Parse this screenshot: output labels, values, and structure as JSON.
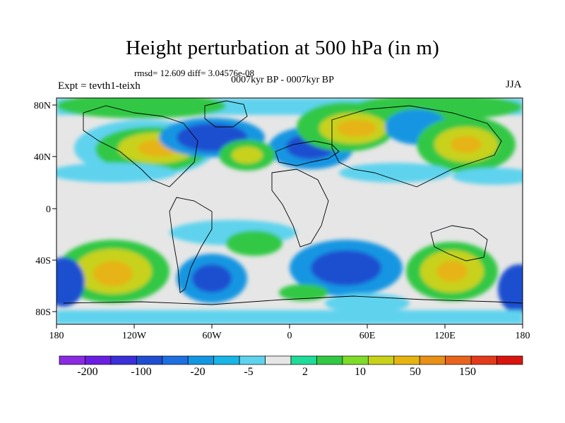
{
  "title": "Height perturbation at 500 hPa (in m)",
  "stats_line": "rmsd= 12.609 diff= 3.04576e-08",
  "period_label": "0007kyr BP - 0007kyr BP",
  "expt_label": "Expt = tevth1-teixh",
  "season_label": "JJA",
  "map": {
    "projection": "cylindrical equidistant",
    "lon_range": [
      -180,
      180
    ],
    "lat_range": [
      -90,
      90
    ],
    "x_tick_labels": [
      "180",
      "120W",
      "60W",
      "0",
      "60E",
      "120E",
      "180"
    ],
    "y_tick_labels": [
      "80N",
      "40N",
      "0",
      "40S",
      "80S"
    ]
  },
  "colorbar": {
    "labels": [
      "-200",
      "-100",
      "-20",
      "-5",
      "2",
      "10",
      "50",
      "150"
    ],
    "colors": [
      "#8a2be2",
      "#6a1ee0",
      "#3a2fd8",
      "#1f4fd0",
      "#1e6fe0",
      "#1496e2",
      "#18b5e6",
      "#5fd3ee",
      "#e6e6e6",
      "#1fdc9a",
      "#33c844",
      "#7edc2a",
      "#c8d21a",
      "#e6b412",
      "#e89018",
      "#e8641c",
      "#e33a1c",
      "#d8140e"
    ]
  }
}
